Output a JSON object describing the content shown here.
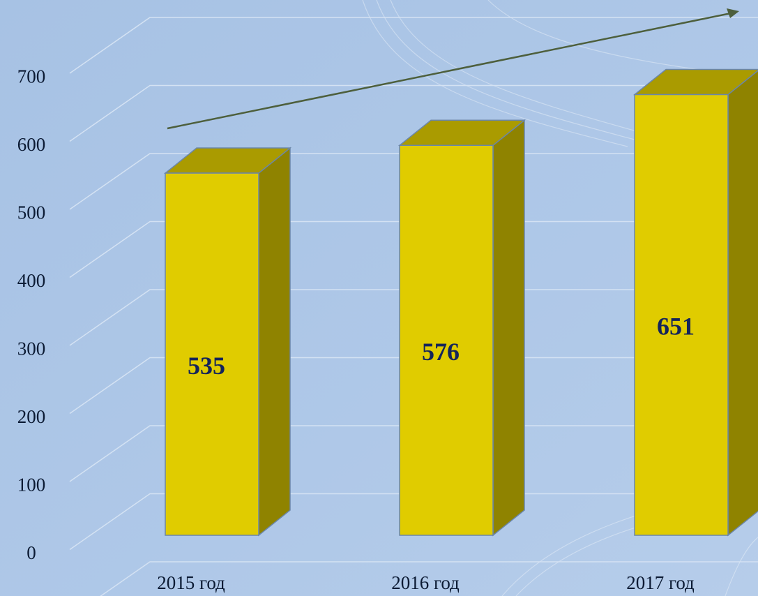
{
  "chart_data": {
    "type": "bar3d",
    "categories": [
      "2015 год",
      "2016 год",
      "2017 год"
    ],
    "values": [
      535,
      576,
      651
    ],
    "color": "#e0cc00",
    "ylim": [
      0,
      800
    ],
    "yticks": [
      0,
      100,
      200,
      300,
      400,
      500,
      600,
      700
    ],
    "grid": true
  }
}
